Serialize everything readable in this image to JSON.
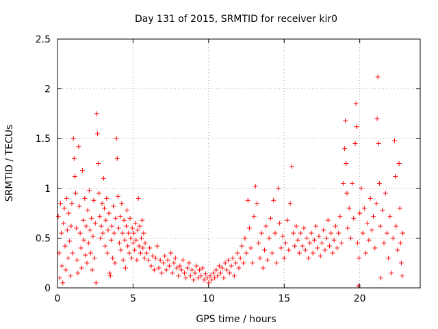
{
  "chart_data": {
    "type": "scatter",
    "title": "Day 131 of 2015, SRMTID for receiver kir0",
    "xlabel": "GPS time / hours",
    "ylabel": "SRMTID / TECUs",
    "xlim": [
      0,
      24
    ],
    "ylim": [
      0,
      2.5
    ],
    "xticks": [
      0,
      5,
      10,
      15,
      20
    ],
    "xtick_labels": [
      "0",
      "5",
      "10",
      "15",
      "20"
    ],
    "yticks": [
      0,
      0.5,
      1,
      1.5,
      2,
      2.5
    ],
    "ytick_labels": [
      "0",
      "0.5",
      "1",
      "1.5",
      "2",
      "2.5"
    ],
    "grid": true,
    "marker": "+",
    "marker_color": "#ff0000",
    "grid_color": "#a0a0a0",
    "series": [
      {
        "name": "SRMTID",
        "points": [
          [
            0.05,
            0.72
          ],
          [
            0.1,
            0.35
          ],
          [
            0.15,
            0.1
          ],
          [
            0.2,
            0.85
          ],
          [
            0.25,
            0.55
          ],
          [
            0.3,
            0.22
          ],
          [
            0.35,
            0.05
          ],
          [
            0.4,
            0.65
          ],
          [
            0.45,
            0.8
          ],
          [
            0.5,
            0.42
          ],
          [
            0.55,
            0.18
          ],
          [
            0.6,
            0.9
          ],
          [
            0.65,
            0.58
          ],
          [
            0.7,
            0.3
          ],
          [
            0.75,
            0.75
          ],
          [
            0.8,
            0.47
          ],
          [
            0.85,
            0.12
          ],
          [
            0.9,
            0.62
          ],
          [
            0.95,
            0.85
          ],
          [
            1.0,
            0.35
          ],
          [
            1.05,
            1.5
          ],
          [
            1.1,
            1.3
          ],
          [
            1.15,
            1.12
          ],
          [
            1.2,
            0.95
          ],
          [
            1.25,
            0.6
          ],
          [
            1.3,
            0.28
          ],
          [
            1.35,
            0.15
          ],
          [
            1.4,
            1.42
          ],
          [
            1.45,
            0.82
          ],
          [
            1.5,
            0.55
          ],
          [
            1.55,
            0.4
          ],
          [
            1.6,
            0.2
          ],
          [
            1.65,
            1.18
          ],
          [
            1.7,
            0.68
          ],
          [
            1.75,
            0.48
          ],
          [
            1.8,
            0.9
          ],
          [
            1.85,
            0.33
          ],
          [
            1.9,
            0.62
          ],
          [
            1.95,
            0.25
          ],
          [
            2.0,
            0.78
          ],
          [
            2.05,
            0.45
          ],
          [
            2.1,
            0.98
          ],
          [
            2.15,
            0.58
          ],
          [
            2.2,
            0.35
          ],
          [
            2.25,
            0.7
          ],
          [
            2.3,
            0.18
          ],
          [
            2.35,
            0.52
          ],
          [
            2.4,
            0.88
          ],
          [
            2.45,
            0.3
          ],
          [
            2.5,
            0.65
          ],
          [
            2.55,
            0.05
          ],
          [
            2.6,
            1.75
          ],
          [
            2.65,
            1.55
          ],
          [
            2.7,
            1.25
          ],
          [
            2.75,
            0.95
          ],
          [
            2.8,
            0.72
          ],
          [
            2.85,
            0.5
          ],
          [
            2.9,
            0.62
          ],
          [
            2.95,
            0.85
          ],
          [
            3.0,
            0.55
          ],
          [
            3.05,
            1.1
          ],
          [
            3.1,
            0.8
          ],
          [
            3.15,
            0.42
          ],
          [
            3.2,
            0.68
          ],
          [
            3.25,
            0.9
          ],
          [
            3.3,
            0.35
          ],
          [
            3.35,
            0.58
          ],
          [
            3.4,
            0.75
          ],
          [
            3.45,
            0.15
          ],
          [
            3.5,
            0.12
          ],
          [
            3.55,
            0.48
          ],
          [
            3.6,
            0.62
          ],
          [
            3.65,
            0.3
          ],
          [
            3.7,
            0.82
          ],
          [
            3.75,
            0.55
          ],
          [
            3.8,
            0.25
          ],
          [
            3.85,
            0.7
          ],
          [
            3.9,
            1.5
          ],
          [
            3.95,
            1.3
          ],
          [
            4.0,
            0.92
          ],
          [
            4.05,
            0.6
          ],
          [
            4.1,
            0.45
          ],
          [
            4.15,
            0.72
          ],
          [
            4.2,
            0.38
          ],
          [
            4.25,
            0.85
          ],
          [
            4.3,
            0.55
          ],
          [
            4.35,
            0.28
          ],
          [
            4.4,
            0.68
          ],
          [
            4.45,
            0.48
          ],
          [
            4.5,
            0.2
          ],
          [
            4.55,
            0.62
          ],
          [
            4.6,
            0.78
          ],
          [
            4.65,
            0.42
          ],
          [
            4.7,
            0.55
          ],
          [
            4.75,
            0.35
          ],
          [
            4.8,
            0.7
          ],
          [
            4.85,
            0.5
          ],
          [
            4.9,
            0.3
          ],
          [
            4.95,
            0.6
          ],
          [
            5.0,
            0.45
          ],
          [
            5.05,
            0.55
          ],
          [
            5.1,
            0.38
          ],
          [
            5.15,
            0.65
          ],
          [
            5.2,
            0.48
          ],
          [
            5.25,
            0.28
          ],
          [
            5.3,
            0.58
          ],
          [
            5.35,
            0.9
          ],
          [
            5.4,
            0.42
          ],
          [
            5.45,
            0.62
          ],
          [
            5.5,
            0.35
          ],
          [
            5.55,
            0.5
          ],
          [
            5.6,
            0.68
          ],
          [
            5.65,
            0.4
          ],
          [
            5.7,
            0.55
          ],
          [
            5.75,
            0.3
          ],
          [
            5.8,
            0.45
          ],
          [
            5.9,
            0.35
          ],
          [
            6.0,
            0.28
          ],
          [
            6.1,
            0.4
          ],
          [
            6.2,
            0.22
          ],
          [
            6.3,
            0.32
          ],
          [
            6.4,
            0.18
          ],
          [
            6.5,
            0.3
          ],
          [
            6.6,
            0.42
          ],
          [
            6.7,
            0.2
          ],
          [
            6.8,
            0.28
          ],
          [
            6.9,
            0.15
          ],
          [
            7.0,
            0.25
          ],
          [
            7.1,
            0.32
          ],
          [
            7.2,
            0.18
          ],
          [
            7.3,
            0.28
          ],
          [
            7.4,
            0.22
          ],
          [
            7.5,
            0.35
          ],
          [
            7.6,
            0.15
          ],
          [
            7.7,
            0.25
          ],
          [
            7.8,
            0.3
          ],
          [
            7.9,
            0.2
          ],
          [
            8.0,
            0.12
          ],
          [
            8.1,
            0.22
          ],
          [
            8.2,
            0.18
          ],
          [
            8.3,
            0.28
          ],
          [
            8.4,
            0.15
          ],
          [
            8.5,
            0.1
          ],
          [
            8.6,
            0.2
          ],
          [
            8.7,
            0.25
          ],
          [
            8.8,
            0.12
          ],
          [
            8.9,
            0.18
          ],
          [
            9.0,
            0.08
          ],
          [
            9.1,
            0.15
          ],
          [
            9.2,
            0.22
          ],
          [
            9.3,
            0.1
          ],
          [
            9.4,
            0.18
          ],
          [
            9.5,
            0.12
          ],
          [
            9.6,
            0.2
          ],
          [
            9.7,
            0.08
          ],
          [
            9.8,
            0.14
          ],
          [
            9.9,
            0.1
          ],
          [
            10.0,
            0.05
          ],
          [
            10.1,
            0.12
          ],
          [
            10.2,
            0.08
          ],
          [
            10.3,
            0.15
          ],
          [
            10.4,
            0.1
          ],
          [
            10.5,
            0.18
          ],
          [
            10.6,
            0.12
          ],
          [
            10.7,
            0.22
          ],
          [
            10.8,
            0.15
          ],
          [
            10.9,
            0.2
          ],
          [
            11.0,
            0.1
          ],
          [
            11.1,
            0.25
          ],
          [
            11.2,
            0.18
          ],
          [
            11.3,
            0.28
          ],
          [
            11.4,
            0.15
          ],
          [
            11.5,
            0.22
          ],
          [
            11.6,
            0.3
          ],
          [
            11.7,
            0.12
          ],
          [
            11.8,
            0.25
          ],
          [
            11.9,
            0.35
          ],
          [
            12.0,
            0.2
          ],
          [
            12.1,
            0.3
          ],
          [
            12.2,
            0.42
          ],
          [
            12.3,
            0.25
          ],
          [
            12.4,
            0.5
          ],
          [
            12.5,
            0.35
          ],
          [
            12.6,
            0.88
          ],
          [
            12.7,
            0.6
          ],
          [
            12.8,
            0.4
          ],
          [
            12.9,
            0.25
          ],
          [
            13.0,
            0.72
          ],
          [
            13.1,
            1.02
          ],
          [
            13.2,
            0.85
          ],
          [
            13.3,
            0.45
          ],
          [
            13.4,
            0.3
          ],
          [
            13.5,
            0.55
          ],
          [
            13.6,
            0.2
          ],
          [
            13.7,
            0.38
          ],
          [
            13.8,
            0.62
          ],
          [
            13.9,
            0.28
          ],
          [
            14.0,
            0.5
          ],
          [
            14.1,
            0.7
          ],
          [
            14.2,
            0.35
          ],
          [
            14.3,
            0.88
          ],
          [
            14.4,
            0.55
          ],
          [
            14.5,
            0.25
          ],
          [
            14.6,
            1.0
          ],
          [
            14.7,
            0.65
          ],
          [
            14.8,
            0.4
          ],
          [
            14.9,
            0.52
          ],
          [
            15.0,
            0.3
          ],
          [
            15.1,
            0.45
          ],
          [
            15.2,
            0.68
          ],
          [
            15.3,
            0.38
          ],
          [
            15.4,
            0.85
          ],
          [
            15.5,
            1.22
          ],
          [
            15.6,
            0.55
          ],
          [
            15.7,
            0.42
          ],
          [
            15.8,
            0.62
          ],
          [
            15.9,
            0.48
          ],
          [
            16.0,
            0.35
          ],
          [
            16.1,
            0.55
          ],
          [
            16.2,
            0.42
          ],
          [
            16.3,
            0.6
          ],
          [
            16.4,
            0.38
          ],
          [
            16.5,
            0.5
          ],
          [
            16.6,
            0.3
          ],
          [
            16.7,
            0.45
          ],
          [
            16.8,
            0.55
          ],
          [
            16.9,
            0.35
          ],
          [
            17.0,
            0.48
          ],
          [
            17.1,
            0.62
          ],
          [
            17.2,
            0.4
          ],
          [
            17.3,
            0.52
          ],
          [
            17.4,
            0.32
          ],
          [
            17.5,
            0.45
          ],
          [
            17.6,
            0.58
          ],
          [
            17.7,
            0.38
          ],
          [
            17.8,
            0.5
          ],
          [
            17.9,
            0.68
          ],
          [
            18.0,
            0.42
          ],
          [
            18.1,
            0.55
          ],
          [
            18.2,
            0.35
          ],
          [
            18.3,
            0.48
          ],
          [
            18.4,
            0.62
          ],
          [
            18.5,
            0.4
          ],
          [
            18.6,
            0.55
          ],
          [
            18.7,
            0.72
          ],
          [
            18.8,
            0.45
          ],
          [
            18.9,
            1.05
          ],
          [
            19.0,
            1.4
          ],
          [
            19.05,
            1.68
          ],
          [
            19.1,
            1.25
          ],
          [
            19.15,
            0.95
          ],
          [
            19.2,
            0.6
          ],
          [
            19.3,
            0.8
          ],
          [
            19.4,
            0.5
          ],
          [
            19.5,
            1.05
          ],
          [
            19.6,
            0.7
          ],
          [
            19.7,
            1.45
          ],
          [
            19.75,
            1.85
          ],
          [
            19.8,
            1.62
          ],
          [
            19.85,
            0.45
          ],
          [
            19.9,
            0.02
          ],
          [
            19.95,
            0.3
          ],
          [
            20.0,
            0.75
          ],
          [
            20.1,
            1.0
          ],
          [
            20.2,
            0.55
          ],
          [
            20.3,
            0.8
          ],
          [
            20.4,
            0.35
          ],
          [
            20.5,
            0.65
          ],
          [
            20.6,
            0.48
          ],
          [
            20.7,
            0.9
          ],
          [
            20.8,
            0.58
          ],
          [
            20.9,
            0.72
          ],
          [
            21.0,
            0.4
          ],
          [
            21.1,
            0.85
          ],
          [
            21.15,
            1.7
          ],
          [
            21.2,
            2.12
          ],
          [
            21.25,
            1.45
          ],
          [
            21.3,
            1.05
          ],
          [
            21.35,
            0.62
          ],
          [
            21.4,
            0.1
          ],
          [
            21.5,
            0.78
          ],
          [
            21.6,
            0.45
          ],
          [
            21.7,
            0.95
          ],
          [
            21.8,
            0.55
          ],
          [
            21.9,
            0.3
          ],
          [
            22.0,
            0.72
          ],
          [
            22.1,
            0.15
          ],
          [
            22.2,
            0.5
          ],
          [
            22.3,
            1.48
          ],
          [
            22.35,
            1.12
          ],
          [
            22.4,
            0.62
          ],
          [
            22.5,
            0.38
          ],
          [
            22.6,
            1.25
          ],
          [
            22.65,
            0.8
          ],
          [
            22.7,
            0.45
          ],
          [
            22.75,
            0.25
          ],
          [
            22.8,
            0.12
          ],
          [
            22.85,
            0.55
          ]
        ]
      }
    ]
  }
}
